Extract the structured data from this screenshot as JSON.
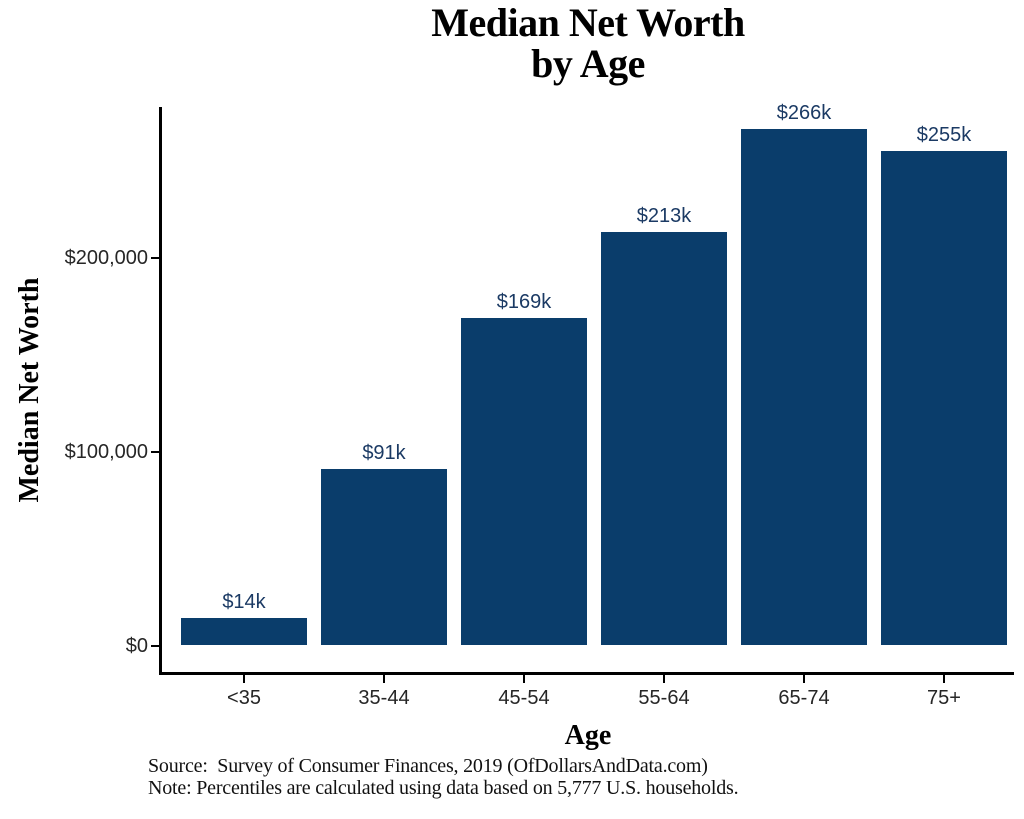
{
  "chart_data": {
    "type": "bar",
    "title": "Median Net Worth by Age",
    "title_lines": [
      "Median Net Worth",
      "by Age"
    ],
    "xlabel": "Age",
    "ylabel": "Median Net Worth",
    "categories": [
      "<35",
      "35-44",
      "45-54",
      "55-64",
      "65-74",
      "75+"
    ],
    "values": [
      14000,
      91000,
      169000,
      213000,
      266000,
      255000
    ],
    "value_labels": [
      "$14k",
      "$91k",
      "$169k",
      "$213k",
      "$266k",
      "$255k"
    ],
    "yticks": [
      {
        "value": 0,
        "label": "$0"
      },
      {
        "value": 100000,
        "label": "$100,000"
      },
      {
        "value": 200000,
        "label": "$200,000"
      }
    ],
    "ylim": [
      0,
      280000
    ],
    "grid": false,
    "legend": false,
    "bar_color": "#0a3d6b",
    "value_label_color": "#1b3a64",
    "axis_line_color": "#000000",
    "tick_text_color": "#262626"
  },
  "footer": {
    "source": "Source:  Survey of Consumer Finances, 2019 (OfDollarsAndData.com)",
    "note": "Note: Percentiles are calculated using data based on 5,777 U.S. households."
  }
}
